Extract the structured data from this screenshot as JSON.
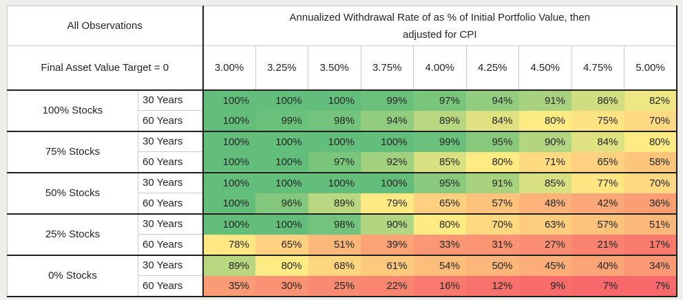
{
  "background_color": "#F0EEEB",
  "chart_data": {
    "type": "heatmap",
    "title": "Annualized Withdrawal Rate of as % of Initial Portfolio Value, then\nadjusted for CPI",
    "corner_label": "All Observations",
    "row_header_label": "Final Asset Value Target = 0",
    "columns": [
      "3.00%",
      "3.25%",
      "3.50%",
      "3.75%",
      "4.00%",
      "4.25%",
      "4.50%",
      "4.75%",
      "5.00%"
    ],
    "row_groups": [
      "100% Stocks",
      "75% Stocks",
      "50% Stocks",
      "25% Stocks",
      "0% Stocks"
    ],
    "rows": [
      {
        "group": "100% Stocks",
        "period": "30 Years",
        "values": [
          100,
          100,
          100,
          99,
          97,
          94,
          91,
          86,
          82
        ]
      },
      {
        "group": "100% Stocks",
        "period": "60 Years",
        "values": [
          100,
          99,
          98,
          94,
          89,
          84,
          80,
          75,
          70
        ]
      },
      {
        "group": "75% Stocks",
        "period": "30 Years",
        "values": [
          100,
          100,
          100,
          100,
          99,
          95,
          90,
          84,
          80
        ]
      },
      {
        "group": "75% Stocks",
        "period": "60 Years",
        "values": [
          100,
          100,
          97,
          92,
          85,
          80,
          71,
          65,
          58
        ]
      },
      {
        "group": "50% Stocks",
        "period": "30 Years",
        "values": [
          100,
          100,
          100,
          100,
          95,
          91,
          85,
          77,
          70
        ]
      },
      {
        "group": "50% Stocks",
        "period": "60 Years",
        "values": [
          100,
          96,
          89,
          79,
          65,
          57,
          48,
          42,
          36
        ]
      },
      {
        "group": "25% Stocks",
        "period": "30 Years",
        "values": [
          100,
          100,
          98,
          90,
          80,
          70,
          63,
          57,
          51
        ]
      },
      {
        "group": "25% Stocks",
        "period": "60 Years",
        "values": [
          78,
          65,
          51,
          39,
          33,
          31,
          27,
          21,
          17
        ]
      },
      {
        "group": "0% Stocks",
        "period": "30 Years",
        "values": [
          89,
          80,
          68,
          61,
          54,
          50,
          45,
          40,
          34
        ]
      },
      {
        "group": "0% Stocks",
        "period": "60 Years",
        "values": [
          35,
          30,
          25,
          22,
          16,
          12,
          9,
          7,
          7
        ]
      }
    ],
    "value_suffix": "%",
    "color_scale": {
      "min_value": 7,
      "min_color": "#F8696B",
      "mid_value": 80,
      "mid_color": "#FFEB84",
      "max_value": 100,
      "max_color": "#63BE7B"
    },
    "grid": false,
    "legend_position": "none"
  },
  "colors": {
    "thick_border": "#1F1F1F",
    "thin_border": "#CCCAC7",
    "text": "#242424",
    "cell_background": "#FFFFFF"
  }
}
